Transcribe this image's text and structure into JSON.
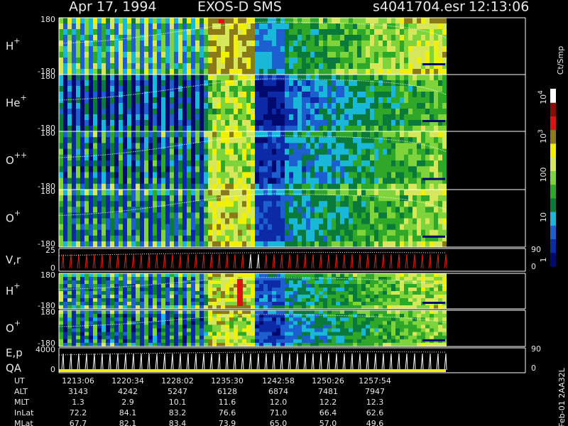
{
  "header": {
    "date": "Apr 17, 1994",
    "instrument": "EXOS-D SMS",
    "file": "s4041704.esr",
    "time": "12:13:06"
  },
  "panels": [
    {
      "label": "H",
      "sup": "+",
      "ticks": [
        "180",
        "-180"
      ]
    },
    {
      "label": "He",
      "sup": "+",
      "ticks": [
        "180",
        "-180"
      ]
    },
    {
      "label": "O",
      "sup": "++",
      "ticks": [
        "180",
        "-180"
      ]
    },
    {
      "label": "O",
      "sup": "+",
      "ticks": [
        "180",
        "-180"
      ]
    },
    {
      "label": "V,r",
      "ticks": [
        "25",
        "0"
      ],
      "right_ticks": [
        "90",
        "0"
      ]
    },
    {
      "label": "H",
      "sup": "+",
      "ticks": [
        "180",
        "-180"
      ]
    },
    {
      "label": "O",
      "sup": "+",
      "ticks": [
        "180",
        "-180"
      ]
    },
    {
      "label": "E,p",
      "label2": "QA",
      "ticks": [
        "4000",
        "0"
      ],
      "right_ticks": [
        "90",
        "0"
      ]
    }
  ],
  "colorbar": {
    "unit": "Ct/Smp",
    "labels": [
      {
        "base": "10",
        "exp": "4"
      },
      {
        "base": "10",
        "exp": "3"
      },
      {
        "base": "100"
      },
      {
        "base": "10"
      },
      {
        "base": "1"
      }
    ]
  },
  "footer": {
    "rows": [
      {
        "label": "UT",
        "values": [
          "1213:06",
          "1220:34",
          "1228:02",
          "1235:30",
          "1242:58",
          "1250:26",
          "1257:54"
        ]
      },
      {
        "label": "ALT",
        "values": [
          "3143",
          "4242",
          "5247",
          "6128",
          "6874",
          "7481",
          "7947"
        ]
      },
      {
        "label": "MLT",
        "values": [
          "1.3",
          "2.9",
          "10.1",
          "11.6",
          "12.0",
          "12.2",
          "12.3"
        ]
      },
      {
        "label": "InLat",
        "values": [
          "72.2",
          "84.1",
          "83.2",
          "76.6",
          "71.0",
          "66.4",
          "62.6"
        ]
      },
      {
        "label": "MLat",
        "values": [
          "67.7",
          "82.1",
          "83.4",
          "73.9",
          "65.0",
          "57.0",
          "49.6"
        ]
      }
    ]
  },
  "footnote": "Feb-01 2AA32L"
}
